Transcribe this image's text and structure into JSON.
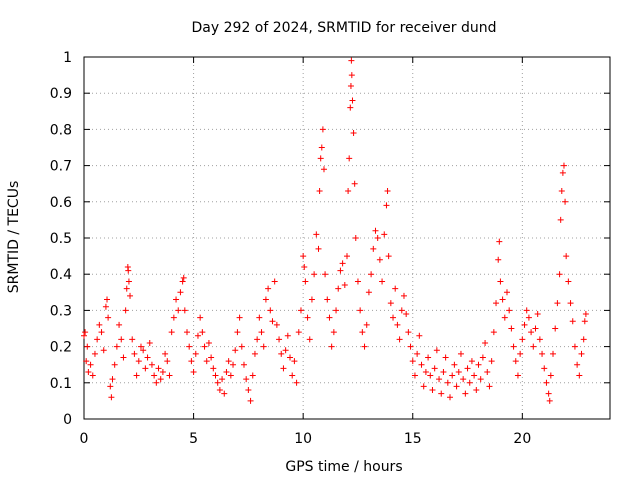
{
  "chart_data": {
    "type": "scatter",
    "title": "Day 292 of 2024, SRMTID for receiver dund",
    "xlabel": "GPS time / hours",
    "ylabel": "SRMTID / TECUs",
    "xlim": [
      0,
      24
    ],
    "ylim": [
      0,
      1
    ],
    "xticks": [
      0,
      5,
      10,
      15,
      20
    ],
    "xtick_labels": [
      "0",
      "5",
      "10",
      "15",
      "20"
    ],
    "yticks": [
      0,
      0.1,
      0.2,
      0.3,
      0.4,
      0.5,
      0.6,
      0.7,
      0.8,
      0.9,
      1
    ],
    "ytick_labels": [
      "0",
      "0.1",
      "0.2",
      "0.3",
      "0.4",
      "0.5",
      "0.6",
      "0.7",
      "0.8",
      "0.9",
      "1"
    ],
    "grid": true,
    "marker": "plus",
    "color": "#ff0000",
    "series": [
      {
        "name": "SRMTID",
        "points": [
          [
            0.0,
            0.23
          ],
          [
            0.05,
            0.24
          ],
          [
            0.1,
            0.16
          ],
          [
            0.15,
            0.2
          ],
          [
            0.2,
            0.13
          ],
          [
            0.3,
            0.15
          ],
          [
            0.4,
            0.12
          ],
          [
            0.5,
            0.18
          ],
          [
            0.6,
            0.22
          ],
          [
            0.7,
            0.26
          ],
          [
            0.8,
            0.24
          ],
          [
            0.9,
            0.19
          ],
          [
            1.0,
            0.31
          ],
          [
            1.05,
            0.33
          ],
          [
            1.1,
            0.28
          ],
          [
            1.2,
            0.09
          ],
          [
            1.25,
            0.06
          ],
          [
            1.3,
            0.11
          ],
          [
            1.4,
            0.15
          ],
          [
            1.5,
            0.2
          ],
          [
            1.6,
            0.26
          ],
          [
            1.7,
            0.22
          ],
          [
            1.8,
            0.17
          ],
          [
            1.9,
            0.3
          ],
          [
            1.95,
            0.36
          ],
          [
            2.0,
            0.42
          ],
          [
            2.02,
            0.41
          ],
          [
            2.05,
            0.38
          ],
          [
            2.1,
            0.34
          ],
          [
            2.2,
            0.22
          ],
          [
            2.3,
            0.18
          ],
          [
            2.4,
            0.12
          ],
          [
            2.5,
            0.16
          ],
          [
            2.6,
            0.2
          ],
          [
            2.7,
            0.19
          ],
          [
            2.8,
            0.14
          ],
          [
            2.9,
            0.17
          ],
          [
            3.0,
            0.21
          ],
          [
            3.1,
            0.15
          ],
          [
            3.2,
            0.12
          ],
          [
            3.3,
            0.1
          ],
          [
            3.4,
            0.14
          ],
          [
            3.5,
            0.11
          ],
          [
            3.6,
            0.13
          ],
          [
            3.7,
            0.18
          ],
          [
            3.8,
            0.16
          ],
          [
            3.9,
            0.12
          ],
          [
            4.0,
            0.24
          ],
          [
            4.1,
            0.28
          ],
          [
            4.2,
            0.33
          ],
          [
            4.3,
            0.3
          ],
          [
            4.4,
            0.35
          ],
          [
            4.5,
            0.38
          ],
          [
            4.55,
            0.39
          ],
          [
            4.6,
            0.3
          ],
          [
            4.7,
            0.24
          ],
          [
            4.8,
            0.2
          ],
          [
            4.9,
            0.16
          ],
          [
            5.0,
            0.13
          ],
          [
            5.1,
            0.18
          ],
          [
            5.2,
            0.23
          ],
          [
            5.3,
            0.28
          ],
          [
            5.4,
            0.24
          ],
          [
            5.5,
            0.2
          ],
          [
            5.6,
            0.16
          ],
          [
            5.7,
            0.21
          ],
          [
            5.8,
            0.17
          ],
          [
            5.9,
            0.14
          ],
          [
            6.0,
            0.12
          ],
          [
            6.1,
            0.1
          ],
          [
            6.2,
            0.08
          ],
          [
            6.3,
            0.11
          ],
          [
            6.4,
            0.07
          ],
          [
            6.5,
            0.13
          ],
          [
            6.6,
            0.16
          ],
          [
            6.7,
            0.12
          ],
          [
            6.8,
            0.15
          ],
          [
            6.9,
            0.19
          ],
          [
            7.0,
            0.24
          ],
          [
            7.1,
            0.28
          ],
          [
            7.2,
            0.2
          ],
          [
            7.3,
            0.15
          ],
          [
            7.4,
            0.11
          ],
          [
            7.5,
            0.08
          ],
          [
            7.6,
            0.05
          ],
          [
            7.7,
            0.12
          ],
          [
            7.8,
            0.18
          ],
          [
            7.9,
            0.22
          ],
          [
            8.0,
            0.28
          ],
          [
            8.1,
            0.24
          ],
          [
            8.2,
            0.2
          ],
          [
            8.3,
            0.33
          ],
          [
            8.4,
            0.36
          ],
          [
            8.5,
            0.3
          ],
          [
            8.6,
            0.27
          ],
          [
            8.7,
            0.38
          ],
          [
            8.8,
            0.26
          ],
          [
            8.9,
            0.22
          ],
          [
            9.0,
            0.18
          ],
          [
            9.1,
            0.14
          ],
          [
            9.2,
            0.19
          ],
          [
            9.3,
            0.23
          ],
          [
            9.4,
            0.17
          ],
          [
            9.5,
            0.12
          ],
          [
            9.6,
            0.16
          ],
          [
            9.7,
            0.1
          ],
          [
            9.8,
            0.24
          ],
          [
            9.9,
            0.3
          ],
          [
            10.0,
            0.45
          ],
          [
            10.05,
            0.42
          ],
          [
            10.1,
            0.38
          ],
          [
            10.2,
            0.28
          ],
          [
            10.3,
            0.22
          ],
          [
            10.4,
            0.33
          ],
          [
            10.5,
            0.4
          ],
          [
            10.6,
            0.51
          ],
          [
            10.7,
            0.47
          ],
          [
            10.75,
            0.63
          ],
          [
            10.8,
            0.72
          ],
          [
            10.85,
            0.75
          ],
          [
            10.9,
            0.8
          ],
          [
            10.95,
            0.69
          ],
          [
            11.0,
            0.4
          ],
          [
            11.1,
            0.33
          ],
          [
            11.2,
            0.28
          ],
          [
            11.3,
            0.2
          ],
          [
            11.4,
            0.24
          ],
          [
            11.5,
            0.3
          ],
          [
            11.6,
            0.36
          ],
          [
            11.7,
            0.41
          ],
          [
            11.8,
            0.43
          ],
          [
            11.9,
            0.37
          ],
          [
            12.0,
            0.45
          ],
          [
            12.05,
            0.63
          ],
          [
            12.1,
            0.72
          ],
          [
            12.15,
            0.86
          ],
          [
            12.18,
            0.92
          ],
          [
            12.2,
            0.99
          ],
          [
            12.22,
            0.95
          ],
          [
            12.25,
            0.88
          ],
          [
            12.3,
            0.79
          ],
          [
            12.35,
            0.65
          ],
          [
            12.4,
            0.5
          ],
          [
            12.5,
            0.38
          ],
          [
            12.6,
            0.3
          ],
          [
            12.7,
            0.24
          ],
          [
            12.8,
            0.2
          ],
          [
            12.9,
            0.26
          ],
          [
            13.0,
            0.35
          ],
          [
            13.1,
            0.4
          ],
          [
            13.2,
            0.47
          ],
          [
            13.3,
            0.52
          ],
          [
            13.4,
            0.5
          ],
          [
            13.5,
            0.44
          ],
          [
            13.6,
            0.38
          ],
          [
            13.7,
            0.51
          ],
          [
            13.8,
            0.59
          ],
          [
            13.85,
            0.63
          ],
          [
            13.9,
            0.45
          ],
          [
            14.0,
            0.32
          ],
          [
            14.1,
            0.28
          ],
          [
            14.2,
            0.36
          ],
          [
            14.3,
            0.26
          ],
          [
            14.4,
            0.22
          ],
          [
            14.5,
            0.3
          ],
          [
            14.6,
            0.34
          ],
          [
            14.7,
            0.29
          ],
          [
            14.8,
            0.24
          ],
          [
            14.9,
            0.2
          ],
          [
            15.0,
            0.16
          ],
          [
            15.1,
            0.12
          ],
          [
            15.2,
            0.18
          ],
          [
            15.3,
            0.23
          ],
          [
            15.4,
            0.15
          ],
          [
            15.5,
            0.09
          ],
          [
            15.6,
            0.13
          ],
          [
            15.7,
            0.17
          ],
          [
            15.8,
            0.12
          ],
          [
            15.9,
            0.08
          ],
          [
            16.0,
            0.14
          ],
          [
            16.1,
            0.19
          ],
          [
            16.2,
            0.11
          ],
          [
            16.3,
            0.07
          ],
          [
            16.4,
            0.13
          ],
          [
            16.5,
            0.17
          ],
          [
            16.6,
            0.1
          ],
          [
            16.7,
            0.06
          ],
          [
            16.8,
            0.12
          ],
          [
            16.9,
            0.15
          ],
          [
            17.0,
            0.09
          ],
          [
            17.1,
            0.13
          ],
          [
            17.2,
            0.18
          ],
          [
            17.3,
            0.11
          ],
          [
            17.4,
            0.07
          ],
          [
            17.5,
            0.14
          ],
          [
            17.6,
            0.1
          ],
          [
            17.7,
            0.16
          ],
          [
            17.8,
            0.12
          ],
          [
            17.9,
            0.08
          ],
          [
            18.0,
            0.15
          ],
          [
            18.1,
            0.11
          ],
          [
            18.2,
            0.17
          ],
          [
            18.3,
            0.21
          ],
          [
            18.4,
            0.13
          ],
          [
            18.5,
            0.09
          ],
          [
            18.6,
            0.16
          ],
          [
            18.7,
            0.24
          ],
          [
            18.8,
            0.32
          ],
          [
            18.9,
            0.44
          ],
          [
            18.95,
            0.49
          ],
          [
            19.0,
            0.38
          ],
          [
            19.1,
            0.33
          ],
          [
            19.2,
            0.28
          ],
          [
            19.3,
            0.35
          ],
          [
            19.4,
            0.3
          ],
          [
            19.5,
            0.25
          ],
          [
            19.6,
            0.2
          ],
          [
            19.7,
            0.16
          ],
          [
            19.8,
            0.12
          ],
          [
            19.9,
            0.18
          ],
          [
            20.0,
            0.22
          ],
          [
            20.1,
            0.26
          ],
          [
            20.2,
            0.3
          ],
          [
            20.3,
            0.28
          ],
          [
            20.4,
            0.24
          ],
          [
            20.5,
            0.2
          ],
          [
            20.6,
            0.25
          ],
          [
            20.7,
            0.29
          ],
          [
            20.8,
            0.22
          ],
          [
            20.9,
            0.18
          ],
          [
            21.0,
            0.14
          ],
          [
            21.1,
            0.1
          ],
          [
            21.2,
            0.07
          ],
          [
            21.25,
            0.05
          ],
          [
            21.3,
            0.12
          ],
          [
            21.4,
            0.18
          ],
          [
            21.5,
            0.25
          ],
          [
            21.6,
            0.32
          ],
          [
            21.7,
            0.4
          ],
          [
            21.75,
            0.55
          ],
          [
            21.8,
            0.63
          ],
          [
            21.85,
            0.68
          ],
          [
            21.9,
            0.7
          ],
          [
            21.95,
            0.6
          ],
          [
            22.0,
            0.45
          ],
          [
            22.1,
            0.38
          ],
          [
            22.2,
            0.32
          ],
          [
            22.3,
            0.27
          ],
          [
            22.4,
            0.2
          ],
          [
            22.5,
            0.15
          ],
          [
            22.6,
            0.12
          ],
          [
            22.7,
            0.18
          ],
          [
            22.8,
            0.22
          ],
          [
            22.85,
            0.27
          ],
          [
            22.9,
            0.29
          ]
        ]
      }
    ]
  }
}
